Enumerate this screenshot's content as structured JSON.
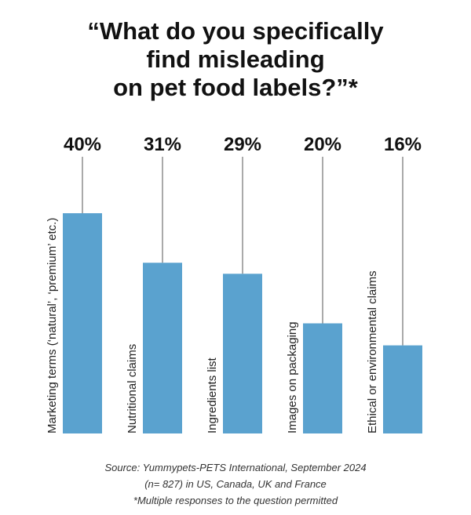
{
  "title_lines": [
    "“What do you specifically",
    "find misleading",
    "on pet food labels?”*"
  ],
  "chart_data": {
    "type": "bar",
    "categories": [
      "Marketing terms (‘natural’, ‘premium’ etc.)",
      "Nutritional claims",
      "Ingredients list",
      "Images on packaging",
      "Ethical or environmental claims"
    ],
    "values": [
      40,
      31,
      29,
      20,
      16
    ],
    "value_labels": [
      "40%",
      "31%",
      "29%",
      "20%",
      "16%"
    ],
    "ylim": [
      0,
      40
    ],
    "grid": false,
    "bar_color": "#5aa2cf"
  },
  "footer_lines": [
    "Source: Yummypets-PETS International, September 2024",
    "(n= 827) in US, Canada, UK and France",
    "*Multiple responses to the question permitted"
  ]
}
